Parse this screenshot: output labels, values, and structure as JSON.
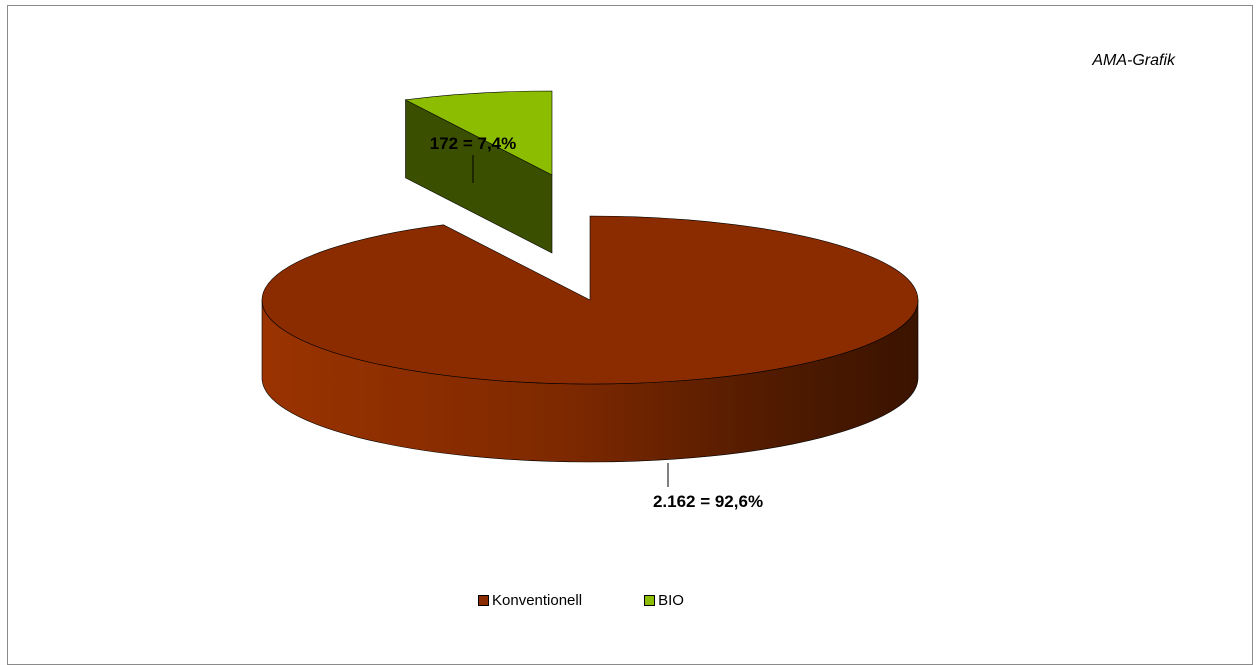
{
  "source_note": "AMA-Grafik",
  "chart_data": {
    "type": "pie",
    "style": "3d-exploded",
    "title": "",
    "series": [
      {
        "name": "Konventionell",
        "value": 2162,
        "percent": 92.6,
        "label": "2.162 = 92,6%",
        "color": "#8B2C00"
      },
      {
        "name": "BIO",
        "value": 172,
        "percent": 7.4,
        "label": "172 = 7,4%",
        "color": "#8CBD00"
      }
    ],
    "legend": {
      "position": "bottom"
    }
  }
}
